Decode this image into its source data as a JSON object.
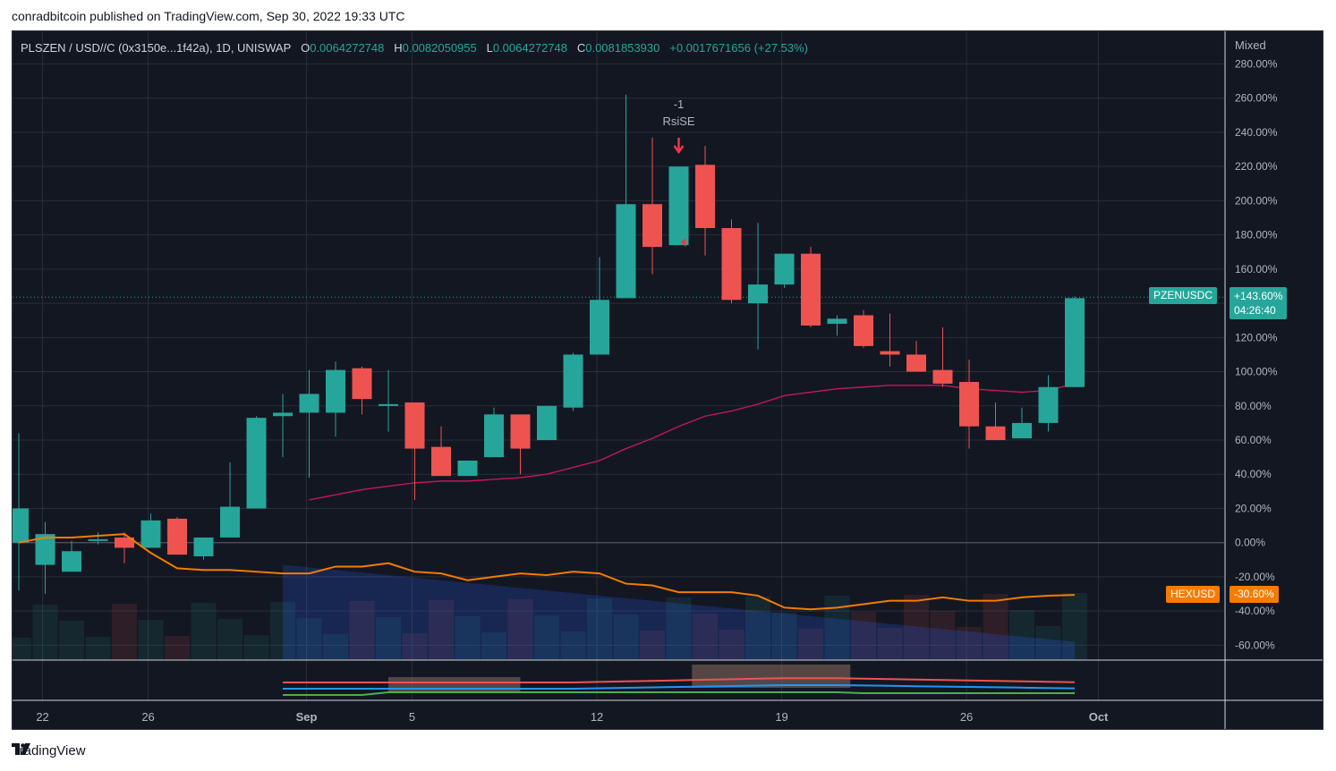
{
  "caption": "conradbitcoin published on TradingView.com, Sep 30, 2022 19:33 UTC",
  "legend": {
    "symbol": "PLSZEN / USD//C (0x3150e...1f42a), 1D, UNISWAP",
    "o_label": "O",
    "o_value": "0.0064272748",
    "h_label": "H",
    "h_value": "0.0082050955",
    "l_label": "L",
    "l_value": "0.0064272748",
    "c_label": "C",
    "c_value": "0.0081853930",
    "change": "+0.0017671656 (+27.53%)"
  },
  "scale_mode": "Mixed",
  "footer": "TradingView",
  "colors": {
    "bg": "#131722",
    "up": "#26a69a",
    "down": "#ef5350",
    "ma": "#c2185b",
    "hex": "#f57c00",
    "grid": "#2a2e39",
    "axis_text": "#b2b5be"
  },
  "chart_data": {
    "type": "candlestick",
    "y_unit": "percent",
    "ylim": [
      -70,
      280
    ],
    "y_ticks": [
      "280.00%",
      "260.00%",
      "240.00%",
      "220.00%",
      "200.00%",
      "180.00%",
      "160.00%",
      "140.00%",
      "120.00%",
      "100.00%",
      "80.00%",
      "60.00%",
      "40.00%",
      "20.00%",
      "0.00%",
      "-20.00%",
      "-40.00%",
      "-60.00%"
    ],
    "y_tick_values": [
      280,
      260,
      240,
      220,
      200,
      180,
      160,
      140,
      120,
      100,
      80,
      60,
      40,
      20,
      0,
      -20,
      -40,
      -60
    ],
    "x_tick_labels": [
      "22",
      "26",
      "Sep",
      "5",
      "12",
      "19",
      "26",
      "Oct"
    ],
    "x_tick_days": [
      21.9,
      25.9,
      31.9,
      35.9,
      42.9,
      49.9,
      56.9,
      61.9
    ],
    "candles": [
      {
        "d": 21,
        "o": 0,
        "h": 64,
        "l": -28,
        "c": 20
      },
      {
        "d": 22,
        "o": -13,
        "h": 12,
        "l": -30,
        "c": 5
      },
      {
        "d": 23,
        "o": -17,
        "h": 1,
        "l": -17,
        "c": -5
      },
      {
        "d": 24,
        "o": 1,
        "h": 6,
        "l": -1,
        "c": 2
      },
      {
        "d": 25,
        "o": 3,
        "h": 6,
        "l": -12,
        "c": -3
      },
      {
        "d": 26,
        "o": -3,
        "h": 17,
        "l": -3,
        "c": 13
      },
      {
        "d": 27,
        "o": 14,
        "h": 15,
        "l": -7,
        "c": -7
      },
      {
        "d": 28,
        "o": -8,
        "h": 3,
        "l": -10,
        "c": 3
      },
      {
        "d": 29,
        "o": 3,
        "h": 47,
        "l": 3,
        "c": 21
      },
      {
        "d": 30,
        "o": 20,
        "h": 74,
        "l": 20,
        "c": 73
      },
      {
        "d": 31,
        "o": 74,
        "h": 87,
        "l": 50,
        "c": 76
      },
      {
        "d": 32,
        "o": 76,
        "h": 101,
        "l": 38,
        "c": 87
      },
      {
        "d": 33,
        "o": 76,
        "h": 106,
        "l": 62,
        "c": 101
      },
      {
        "d": 34,
        "o": 102,
        "h": 103,
        "l": 75,
        "c": 84
      },
      {
        "d": 35,
        "o": 80,
        "h": 101,
        "l": 65,
        "c": 81
      },
      {
        "d": 36,
        "o": 82,
        "h": 82,
        "l": 25,
        "c": 55
      },
      {
        "d": 37,
        "o": 56,
        "h": 68,
        "l": 39,
        "c": 39
      },
      {
        "d": 38,
        "o": 39,
        "h": 48,
        "l": 39,
        "c": 48
      },
      {
        "d": 39,
        "o": 50,
        "h": 79,
        "l": 50,
        "c": 75
      },
      {
        "d": 40,
        "o": 75,
        "h": 75,
        "l": 40,
        "c": 55
      },
      {
        "d": 41,
        "o": 60,
        "h": 80,
        "l": 60,
        "c": 80
      },
      {
        "d": 42,
        "o": 79,
        "h": 111,
        "l": 77,
        "c": 110
      },
      {
        "d": 43,
        "o": 110,
        "h": 167,
        "l": 110,
        "c": 142
      },
      {
        "d": 44,
        "o": 143,
        "h": 262,
        "l": 143,
        "c": 198
      },
      {
        "d": 45,
        "o": 198,
        "h": 237,
        "l": 157,
        "c": 173
      },
      {
        "d": 46,
        "o": 174,
        "h": 220,
        "l": 174,
        "c": 220
      },
      {
        "d": 47,
        "o": 221,
        "h": 232,
        "l": 168,
        "c": 184
      },
      {
        "d": 48,
        "o": 184,
        "h": 189,
        "l": 140,
        "c": 142
      },
      {
        "d": 49,
        "o": 140,
        "h": 187,
        "l": 113,
        "c": 151
      },
      {
        "d": 50,
        "o": 151,
        "h": 169,
        "l": 149,
        "c": 169
      },
      {
        "d": 51,
        "o": 169,
        "h": 173,
        "l": 126,
        "c": 127
      },
      {
        "d": 52,
        "o": 128,
        "h": 133,
        "l": 121,
        "c": 131
      },
      {
        "d": 53,
        "o": 133,
        "h": 136,
        "l": 114,
        "c": 115
      },
      {
        "d": 54,
        "o": 112,
        "h": 134,
        "l": 103,
        "c": 110
      },
      {
        "d": 55,
        "o": 110,
        "h": 118,
        "l": 100,
        "c": 100
      },
      {
        "d": 56,
        "o": 101,
        "h": 126,
        "l": 91,
        "c": 93
      },
      {
        "d": 57,
        "o": 94,
        "h": 107,
        "l": 55,
        "c": 68
      },
      {
        "d": 58,
        "o": 68,
        "h": 82,
        "l": 60,
        "c": 60
      },
      {
        "d": 59,
        "o": 61,
        "h": 79,
        "l": 61,
        "c": 70
      },
      {
        "d": 60,
        "o": 70,
        "h": 98,
        "l": 65,
        "c": 91
      },
      {
        "d": 61,
        "o": 91,
        "h": 144,
        "l": 91,
        "c": 143
      }
    ],
    "ma_line": [
      [
        32,
        25
      ],
      [
        33,
        28
      ],
      [
        34,
        31
      ],
      [
        35,
        33
      ],
      [
        36,
        35
      ],
      [
        37,
        36
      ],
      [
        38,
        36
      ],
      [
        39,
        37
      ],
      [
        40,
        38
      ],
      [
        41,
        40
      ],
      [
        42,
        44
      ],
      [
        43,
        48
      ],
      [
        44,
        55
      ],
      [
        45,
        61
      ],
      [
        46,
        68
      ],
      [
        47,
        74
      ],
      [
        48,
        77
      ],
      [
        49,
        81
      ],
      [
        50,
        86
      ],
      [
        51,
        88
      ],
      [
        52,
        90
      ],
      [
        53,
        91
      ],
      [
        54,
        92
      ],
      [
        55,
        92
      ],
      [
        56,
        92
      ],
      [
        57,
        90
      ],
      [
        58,
        89
      ],
      [
        59,
        88
      ],
      [
        60,
        89
      ],
      [
        61,
        93
      ]
    ],
    "hex_line": [
      [
        21,
        0
      ],
      [
        22,
        3
      ],
      [
        23,
        3
      ],
      [
        24,
        4
      ],
      [
        25,
        5
      ],
      [
        26,
        -6
      ],
      [
        27,
        -15
      ],
      [
        28,
        -16
      ],
      [
        29,
        -16
      ],
      [
        30,
        -17
      ],
      [
        31,
        -18
      ],
      [
        32,
        -18
      ],
      [
        33,
        -14
      ],
      [
        34,
        -14
      ],
      [
        35,
        -12
      ],
      [
        36,
        -17
      ],
      [
        37,
        -18
      ],
      [
        38,
        -22
      ],
      [
        39,
        -20
      ],
      [
        40,
        -18
      ],
      [
        41,
        -19
      ],
      [
        42,
        -17
      ],
      [
        43,
        -18
      ],
      [
        44,
        -24
      ],
      [
        45,
        -25
      ],
      [
        46,
        -29
      ],
      [
        47,
        -29
      ],
      [
        48,
        -29
      ],
      [
        49,
        -31
      ],
      [
        50,
        -38
      ],
      [
        51,
        -39
      ],
      [
        52,
        -38
      ],
      [
        53,
        -36
      ],
      [
        54,
        -34
      ],
      [
        55,
        -34
      ],
      [
        56,
        -32
      ],
      [
        57,
        -34
      ],
      [
        58,
        -34
      ],
      [
        59,
        -32
      ],
      [
        60,
        -31
      ],
      [
        61,
        -30.6
      ]
    ],
    "price_badge": {
      "symbol": "PZENUSDC",
      "value": "+143.60%",
      "countdown": "04:26:40",
      "at": 143.6
    },
    "hex_badge": {
      "symbol": "HEXUSD",
      "value": "-30.60%",
      "at": -30.6
    },
    "signal": {
      "count": "-1",
      "label": "RsiSE",
      "day": 46
    }
  }
}
